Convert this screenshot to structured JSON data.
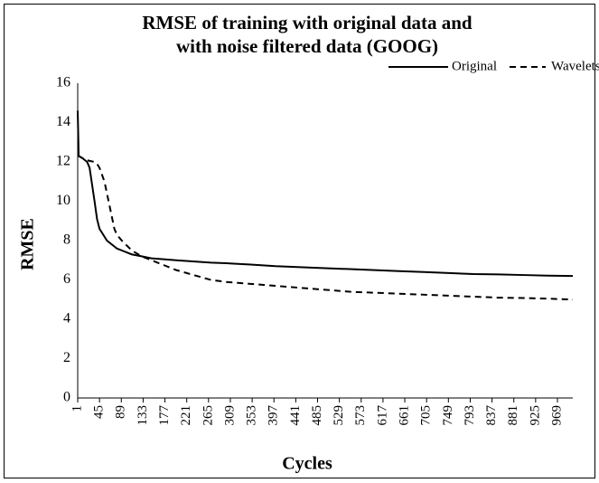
{
  "chart_data": {
    "type": "line",
    "title": "RMSE of training with original data and",
    "subtitle": "with noise filtered data (GOOG)",
    "x_label": "Cycles",
    "y_label": "RMSE",
    "x": [
      1,
      3,
      10,
      20,
      25,
      35,
      40,
      45,
      55,
      60,
      65,
      75,
      80,
      90,
      110,
      130,
      150,
      160,
      200,
      270,
      300,
      350,
      400,
      450,
      500,
      550,
      600,
      650,
      700,
      750,
      800,
      850,
      900,
      950,
      1000
    ],
    "series": [
      {
        "name": "Original",
        "color": "#000000",
        "dash": "solid",
        "values": [
          14.6,
          12.3,
          12.2,
          12.0,
          11.7,
          10.0,
          9.1,
          8.6,
          8.2,
          8.0,
          7.9,
          7.7,
          7.6,
          7.5,
          7.3,
          7.2,
          7.1,
          7.08,
          7.0,
          6.88,
          6.85,
          6.78,
          6.7,
          6.65,
          6.6,
          6.55,
          6.5,
          6.45,
          6.4,
          6.35,
          6.3,
          6.28,
          6.25,
          6.22,
          6.2
        ]
      },
      {
        "name": "Wavelets",
        "color": "#000000",
        "dash": "dashed",
        "values": [
          12.3,
          12.3,
          12.2,
          12.1,
          12.05,
          12.0,
          11.9,
          11.7,
          11.0,
          10.4,
          9.8,
          8.6,
          8.3,
          8.0,
          7.5,
          7.2,
          7.0,
          6.9,
          6.5,
          6.0,
          5.9,
          5.8,
          5.7,
          5.6,
          5.5,
          5.4,
          5.35,
          5.3,
          5.25,
          5.2,
          5.15,
          5.1,
          5.08,
          5.05,
          5.0
        ]
      }
    ],
    "xlim": [
      1,
      1000
    ],
    "xticks": [
      1,
      45,
      89,
      133,
      177,
      221,
      265,
      309,
      353,
      397,
      441,
      485,
      529,
      573,
      617,
      661,
      705,
      749,
      793,
      837,
      881,
      925,
      969
    ],
    "ylim": [
      0,
      16
    ],
    "yticks": [
      0,
      2,
      4,
      6,
      8,
      10,
      12,
      14,
      16
    ],
    "grid": false,
    "legend": "top-right"
  }
}
